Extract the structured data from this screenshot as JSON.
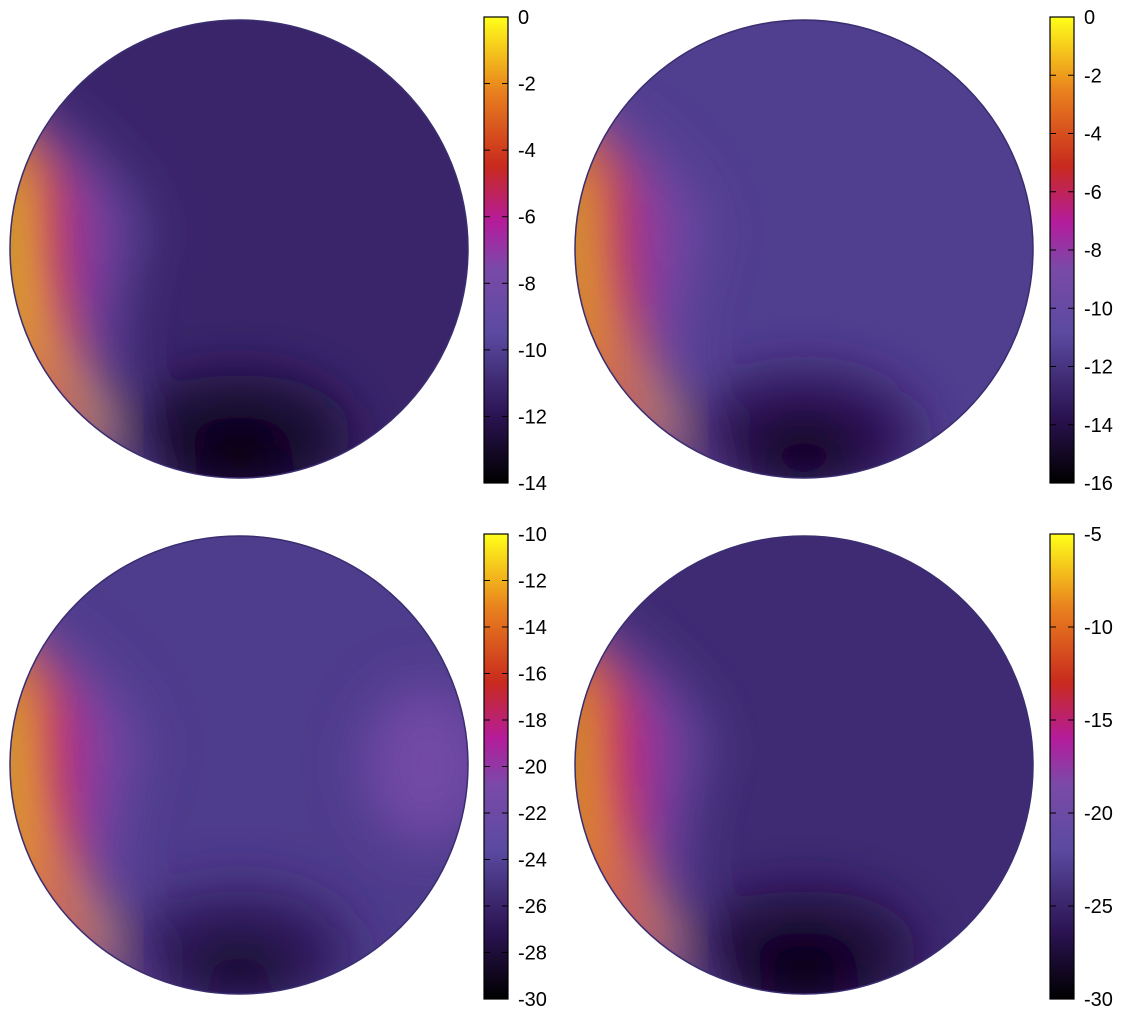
{
  "chart_data": [
    {
      "type": "heatmap",
      "panel": "top-left",
      "colorbar": {
        "range": [
          -14,
          0
        ],
        "ticks": [
          0,
          -2,
          -4,
          -6,
          -8,
          -10,
          -12,
          -14
        ],
        "tick_labels": [
          "0",
          "-2",
          "-4",
          "-6",
          "-8",
          "-10",
          "-12",
          "-14"
        ]
      },
      "field": {
        "background_value": -11.2,
        "features": [
          {
            "kind": "hot-left-edge",
            "peak_value": -0.5
          },
          {
            "kind": "red-band",
            "value": -6.5
          },
          {
            "kind": "dark-spot-bottom",
            "value": -14
          }
        ]
      }
    },
    {
      "type": "heatmap",
      "panel": "top-right",
      "colorbar": {
        "range": [
          -16,
          0
        ],
        "ticks": [
          0,
          -2,
          -4,
          -6,
          -8,
          -10,
          -12,
          -14,
          -16
        ],
        "tick_labels": [
          "0",
          "-2",
          "-4",
          "-6",
          "-8",
          "-10",
          "-12",
          "-14",
          "-16"
        ]
      },
      "field": {
        "background_value": -11.5,
        "features": [
          {
            "kind": "hot-left-edge",
            "peak_value": -1
          },
          {
            "kind": "red-band",
            "value": -7.5
          },
          {
            "kind": "dark-spot-bottom",
            "value": -15.5
          }
        ]
      }
    },
    {
      "type": "heatmap",
      "panel": "bottom-left",
      "colorbar": {
        "range": [
          -30,
          -10
        ],
        "ticks": [
          -10,
          -12,
          -14,
          -16,
          -18,
          -20,
          -22,
          -24,
          -26,
          -28,
          -30
        ],
        "tick_labels": [
          "-10",
          "-12",
          "-14",
          "-16",
          "-18",
          "-20",
          "-22",
          "-24",
          "-26",
          "-28",
          "-30"
        ]
      },
      "field": {
        "background_value": -24.5,
        "features": [
          {
            "kind": "hot-left-edge",
            "peak_value": -11
          },
          {
            "kind": "red-band",
            "value": -19
          },
          {
            "kind": "magenta-spot-right",
            "value": -21.5
          },
          {
            "kind": "dark-spot-bottom",
            "value": -28.5
          }
        ]
      }
    },
    {
      "type": "heatmap",
      "panel": "bottom-right",
      "colorbar": {
        "range": [
          -30,
          -5
        ],
        "ticks": [
          -5,
          -10,
          -15,
          -20,
          -25,
          -30
        ],
        "tick_labels": [
          "-5",
          "-10",
          "-15",
          "-20",
          "-25",
          "-30"
        ]
      },
      "field": {
        "background_value": -24.5,
        "features": [
          {
            "kind": "hot-left-edge",
            "peak_value": -7
          },
          {
            "kind": "red-band",
            "value": -16
          },
          {
            "kind": "dark-spot-bottom",
            "value": -30
          }
        ]
      }
    }
  ]
}
